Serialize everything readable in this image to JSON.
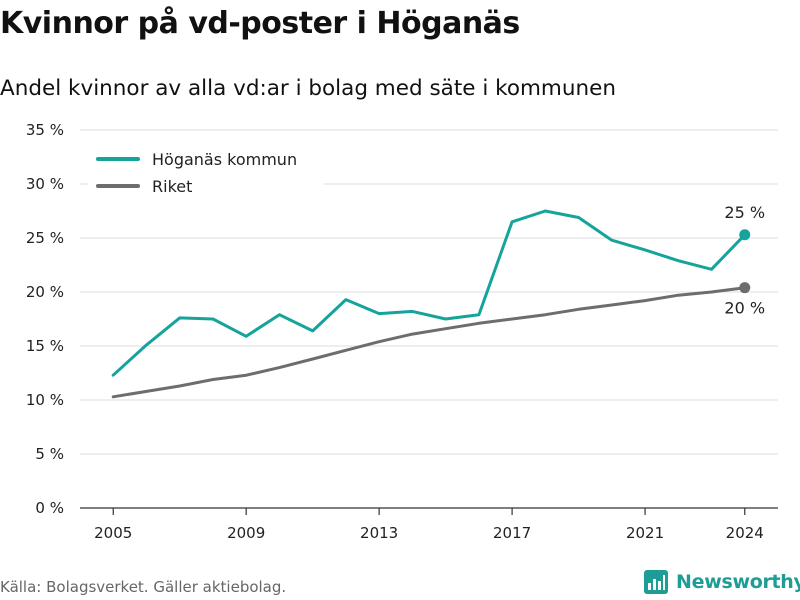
{
  "chart_data": {
    "type": "line",
    "title": "Kvinnor på vd-poster i Höganäs",
    "subtitle": "Andel kvinnor av alla vd:ar i bolag med säte i kommunen",
    "x": [
      2005,
      2006,
      2007,
      2008,
      2009,
      2010,
      2011,
      2012,
      2013,
      2014,
      2015,
      2016,
      2017,
      2018,
      2019,
      2020,
      2021,
      2022,
      2023,
      2024
    ],
    "x_ticks": [
      "2005",
      "2009",
      "2013",
      "2017",
      "2021",
      "2024"
    ],
    "y_ticks": [
      "0 %",
      "5 %",
      "10 %",
      "15 %",
      "20 %",
      "25 %",
      "30 %",
      "35 %"
    ],
    "ylim": [
      0,
      35
    ],
    "xlim": [
      2004,
      2025
    ],
    "grid": "horizontal",
    "legend_position": "top-left",
    "series": [
      {
        "name": "Höganäs kommun",
        "color": "#15a39b",
        "values": [
          12.3,
          15.1,
          17.6,
          17.5,
          15.9,
          17.9,
          16.4,
          19.3,
          18.0,
          18.2,
          17.5,
          17.9,
          26.5,
          27.5,
          26.9,
          24.8,
          23.9,
          22.9,
          22.1,
          25.3
        ],
        "end_label": "25 %"
      },
      {
        "name": "Riket",
        "color": "#6e6c70",
        "values": [
          10.3,
          10.8,
          11.3,
          11.9,
          12.3,
          13.0,
          13.8,
          14.6,
          15.4,
          16.1,
          16.6,
          17.1,
          17.5,
          17.9,
          18.4,
          18.8,
          19.2,
          19.7,
          20.0,
          20.4
        ],
        "end_label": "20 %"
      }
    ]
  },
  "footer": {
    "source": "Källa: Bolagsverket. Gäller aktiebolag.",
    "brand": "Newsworthy",
    "brand_color": "#1e9c96",
    "brand_icon": "bar-chart-icon"
  }
}
